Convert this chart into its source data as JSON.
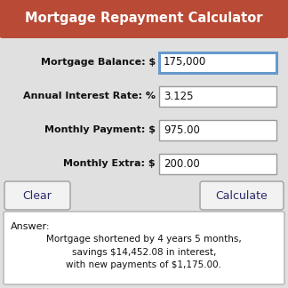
{
  "title": "Mortgage Repayment Calculator",
  "title_bg": "#b94a35",
  "title_color": "#ffffff",
  "bg_color": "#e0e0e0",
  "fields": [
    {
      "label": "Mortgage Balance: $",
      "value": "175,000",
      "highlighted": true
    },
    {
      "label": "Annual Interest Rate: %",
      "value": "3.125",
      "highlighted": false
    },
    {
      "label": "Monthly Payment: $",
      "value": "975.00",
      "highlighted": false
    },
    {
      "label": "Monthly Extra: $",
      "value": "200.00",
      "highlighted": false
    }
  ],
  "btn_clear": "Clear",
  "btn_calculate": "Calculate",
  "btn_text_color": "#2a2a6a",
  "answer_label": "Answer:",
  "answer_line1": "Mortgage shortened by 4 years 5 months,",
  "answer_line2": "savings $14,452.08 in interest,",
  "answer_line3": "with new payments of $1,175.00.",
  "answer_text_color": "#111111",
  "field_box_color": "#ffffff",
  "field_box_border": "#999999",
  "highlight_border": "#6699cc",
  "btn_bg": "#f2f2f2",
  "btn_border": "#aaaaaa",
  "answer_bg": "#ffffff",
  "answer_border": "#bbbbbb",
  "outer_border": "#bbbbbb",
  "outer_bg": "#e0e0e0"
}
